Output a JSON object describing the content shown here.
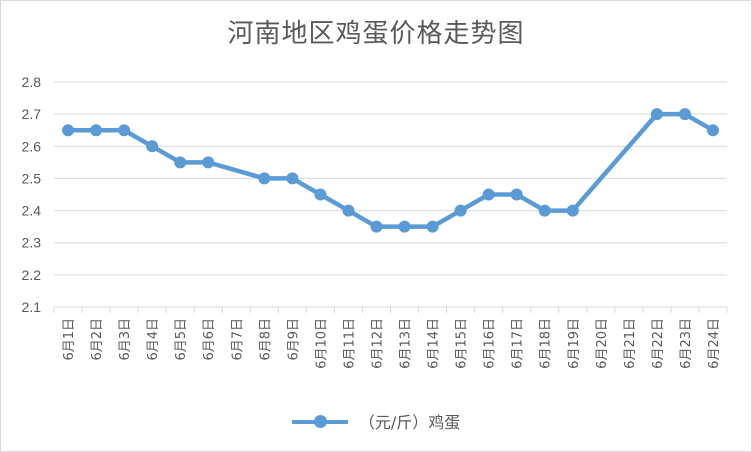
{
  "colors": {
    "series": "#5b9bd5",
    "grid": "#d9d9d9",
    "text": "#595959"
  },
  "chart_data": {
    "type": "line",
    "title": "河南地区鸡蛋价格走势图",
    "xlabel": "",
    "ylabel": "",
    "categories": [
      "6月1日",
      "6月2日",
      "6月3日",
      "6月4日",
      "6月5日",
      "6月6日",
      "6月7日",
      "6月8日",
      "6月9日",
      "6月10日",
      "6月11日",
      "6月12日",
      "6月13日",
      "6月14日",
      "6月15日",
      "6月16日",
      "6月17日",
      "6月18日",
      "6月19日",
      "6月20日",
      "6月21日",
      "6月22日",
      "6月23日",
      "6月24日"
    ],
    "ylim": [
      2.1,
      2.8
    ],
    "yticks": [
      "2.1",
      "2.2",
      "2.3",
      "2.4",
      "2.5",
      "2.6",
      "2.7",
      "2.8"
    ],
    "grid": true,
    "legend": "bottom",
    "series": [
      {
        "name": "（元/斤）鸡蛋",
        "values": [
          2.65,
          2.65,
          2.65,
          2.6,
          2.55,
          2.55,
          null,
          2.5,
          2.5,
          2.45,
          2.4,
          2.35,
          2.35,
          2.35,
          2.4,
          2.45,
          2.45,
          2.4,
          2.4,
          null,
          null,
          2.7,
          2.7,
          2.65
        ]
      }
    ]
  }
}
